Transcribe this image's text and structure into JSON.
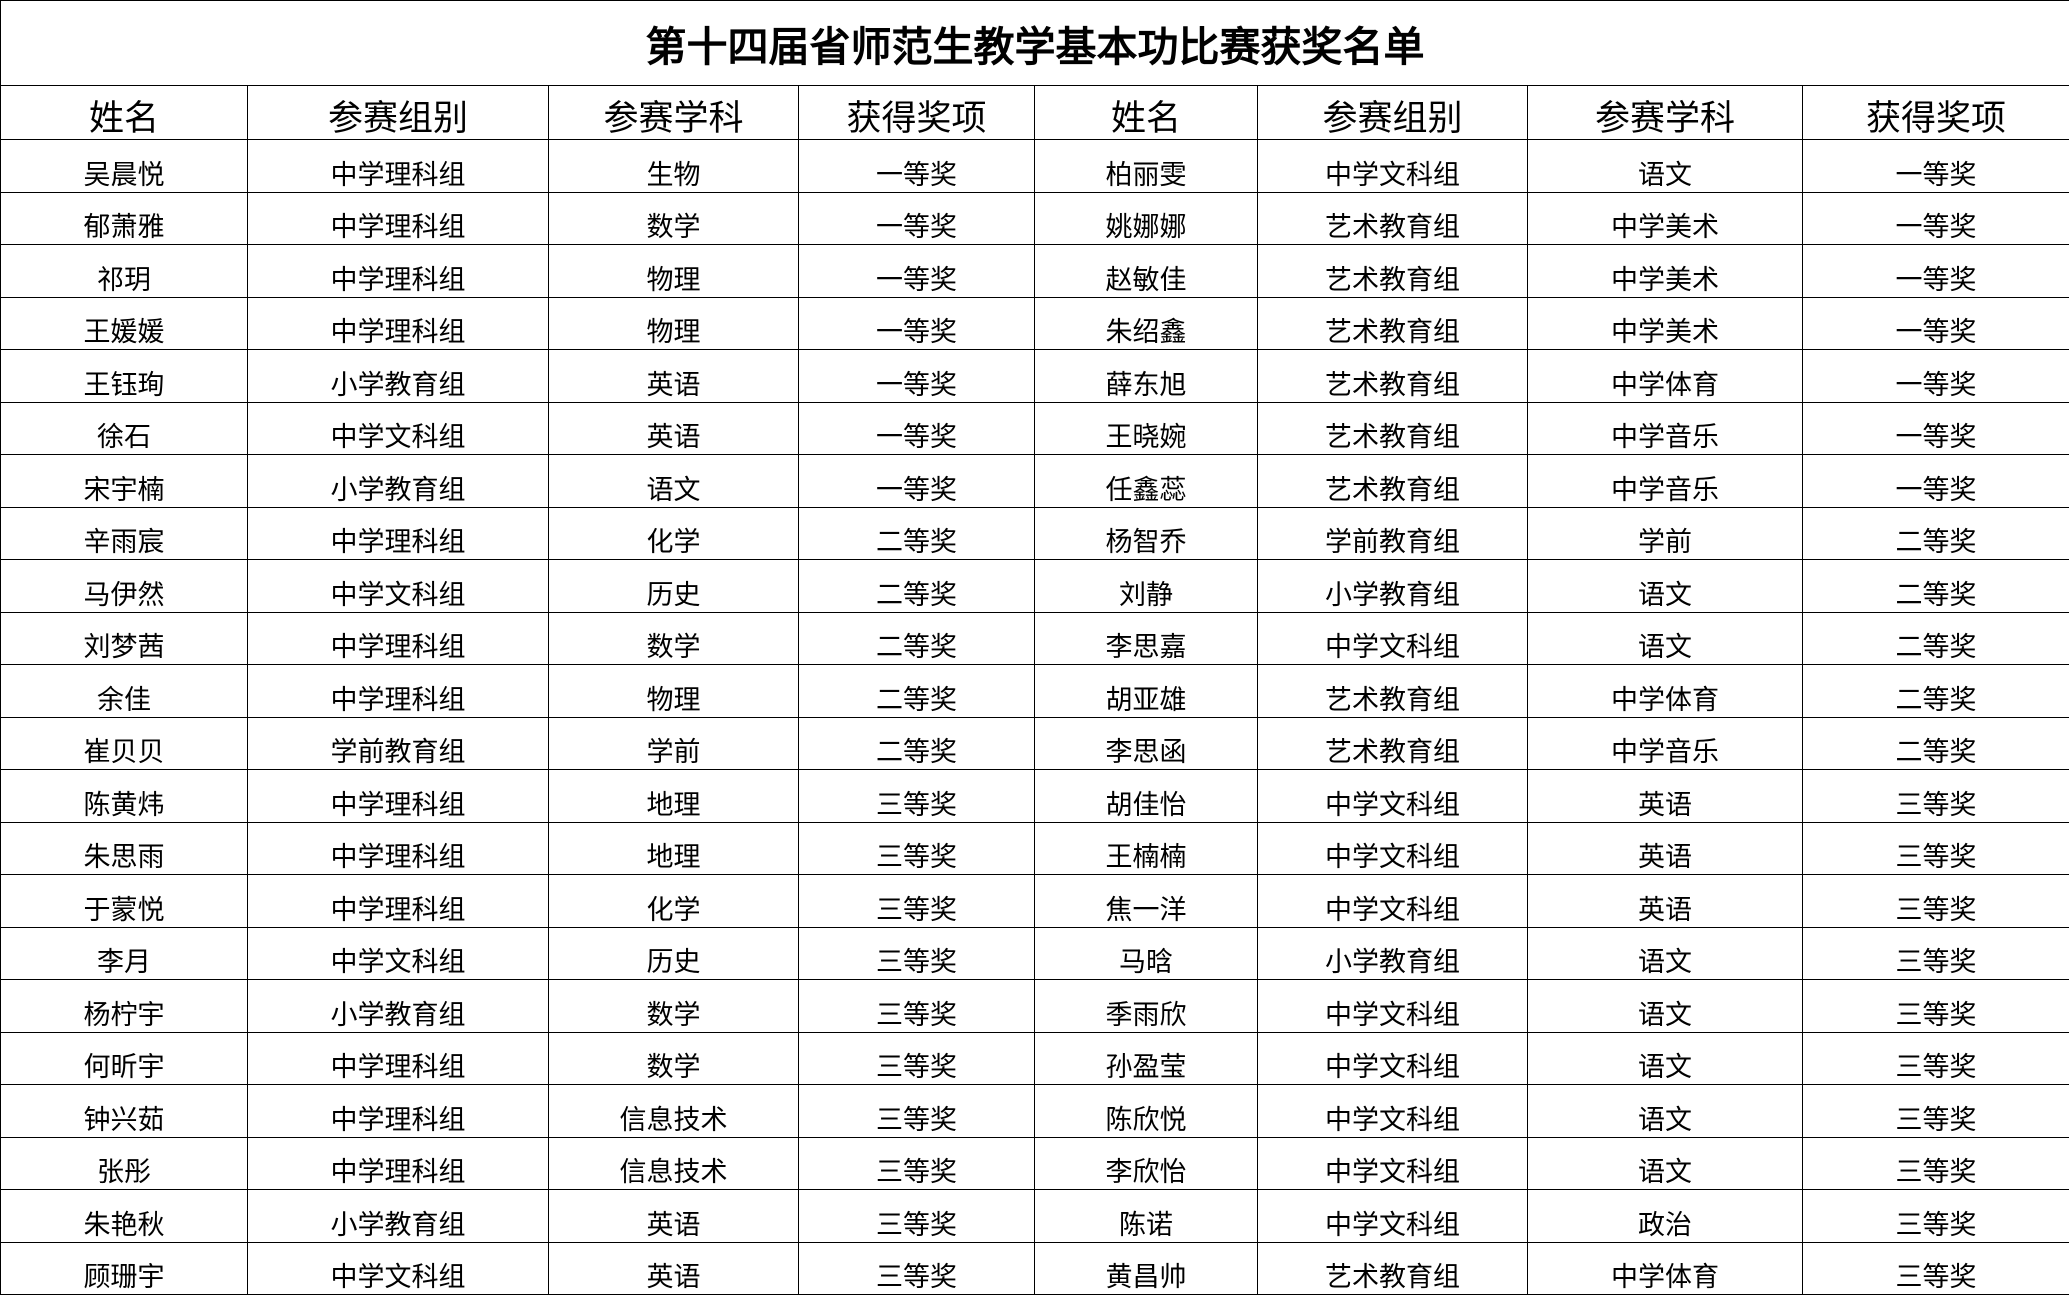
{
  "title": "第十四届省师范生教学基本功比赛获奖名单",
  "headers": [
    "姓名",
    "参赛组别",
    "参赛学科",
    "获得奖项",
    "姓名",
    "参赛组别",
    "参赛学科",
    "获得奖项"
  ],
  "rows": [
    [
      "吴晨悦",
      "中学理科组",
      "生物",
      "一等奖",
      "柏丽雯",
      "中学文科组",
      "语文",
      "一等奖"
    ],
    [
      "郁萧雅",
      "中学理科组",
      "数学",
      "一等奖",
      "姚娜娜",
      "艺术教育组",
      "中学美术",
      "一等奖"
    ],
    [
      "祁玥",
      "中学理科组",
      "物理",
      "一等奖",
      "赵敏佳",
      "艺术教育组",
      "中学美术",
      "一等奖"
    ],
    [
      "王媛媛",
      "中学理科组",
      "物理",
      "一等奖",
      "朱绍鑫",
      "艺术教育组",
      "中学美术",
      "一等奖"
    ],
    [
      "王钰珣",
      "小学教育组",
      "英语",
      "一等奖",
      "薛东旭",
      "艺术教育组",
      "中学体育",
      "一等奖"
    ],
    [
      "徐石",
      "中学文科组",
      "英语",
      "一等奖",
      "王晓婉",
      "艺术教育组",
      "中学音乐",
      "一等奖"
    ],
    [
      "宋宇楠",
      "小学教育组",
      "语文",
      "一等奖",
      "任鑫蕊",
      "艺术教育组",
      "中学音乐",
      "一等奖"
    ],
    [
      "辛雨宸",
      "中学理科组",
      "化学",
      "二等奖",
      "杨智乔",
      "学前教育组",
      "学前",
      "二等奖"
    ],
    [
      "马伊然",
      "中学文科组",
      "历史",
      "二等奖",
      "刘静",
      "小学教育组",
      "语文",
      "二等奖"
    ],
    [
      "刘梦茜",
      "中学理科组",
      "数学",
      "二等奖",
      "李思嘉",
      "中学文科组",
      "语文",
      "二等奖"
    ],
    [
      "余佳",
      "中学理科组",
      "物理",
      "二等奖",
      "胡亚雄",
      "艺术教育组",
      "中学体育",
      "二等奖"
    ],
    [
      "崔贝贝",
      "学前教育组",
      "学前",
      "二等奖",
      "李思函",
      "艺术教育组",
      "中学音乐",
      "二等奖"
    ],
    [
      "陈黄炜",
      "中学理科组",
      "地理",
      "三等奖",
      "胡佳怡",
      "中学文科组",
      "英语",
      "三等奖"
    ],
    [
      "朱思雨",
      "中学理科组",
      "地理",
      "三等奖",
      "王楠楠",
      "中学文科组",
      "英语",
      "三等奖"
    ],
    [
      "于蒙悦",
      "中学理科组",
      "化学",
      "三等奖",
      "焦一洋",
      "中学文科组",
      "英语",
      "三等奖"
    ],
    [
      "李月",
      "中学文科组",
      "历史",
      "三等奖",
      "马晗",
      "小学教育组",
      "语文",
      "三等奖"
    ],
    [
      "杨柠宇",
      "小学教育组",
      "数学",
      "三等奖",
      "季雨欣",
      "中学文科组",
      "语文",
      "三等奖"
    ],
    [
      "何昕宇",
      "中学理科组",
      "数学",
      "三等奖",
      "孙盈莹",
      "中学文科组",
      "语文",
      "三等奖"
    ],
    [
      "钟兴茹",
      "中学理科组",
      "信息技术",
      "三等奖",
      "陈欣悦",
      "中学文科组",
      "语文",
      "三等奖"
    ],
    [
      "张彤",
      "中学理科组",
      "信息技术",
      "三等奖",
      "李欣怡",
      "中学文科组",
      "语文",
      "三等奖"
    ],
    [
      "朱艳秋",
      "小学教育组",
      "英语",
      "三等奖",
      "陈诺",
      "中学文科组",
      "政治",
      "三等奖"
    ],
    [
      "顾珊宇",
      "中学文科组",
      "英语",
      "三等奖",
      "黄昌帅",
      "艺术教育组",
      "中学体育",
      "三等奖"
    ]
  ]
}
